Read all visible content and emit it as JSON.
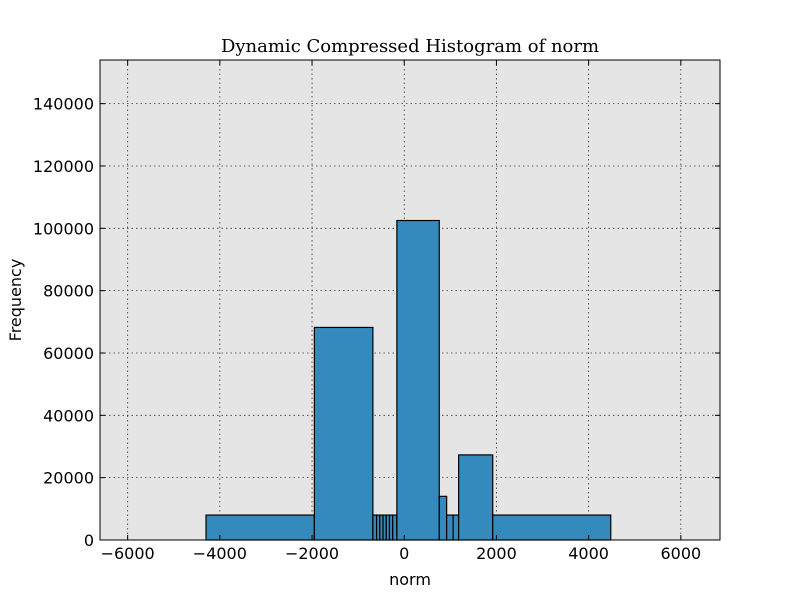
{
  "chart_data": {
    "type": "bar",
    "title": "Dynamic Compressed Histogram of norm",
    "xlabel": "norm",
    "ylabel": "Frequency",
    "xlim": [
      -6600,
      6850
    ],
    "ylim": [
      0,
      154000
    ],
    "xticks": [
      -6000,
      -4000,
      -2000,
      0,
      2000,
      4000,
      6000
    ],
    "xtick_labels": [
      "−6000",
      "−4000",
      "−2000",
      "0",
      "2000",
      "4000",
      "6000"
    ],
    "yticks": [
      0,
      20000,
      40000,
      60000,
      80000,
      100000,
      120000,
      140000
    ],
    "ytick_labels": [
      "0",
      "20000",
      "40000",
      "60000",
      "80000",
      "100000",
      "120000",
      "140000"
    ],
    "grid": true,
    "plot_background": "#e5e5e5",
    "bar_color": "#348abd",
    "bins": [
      {
        "x0": -4300,
        "x1": -1950,
        "value": 8000
      },
      {
        "x0": -1950,
        "x1": -680,
        "value": 68200
      },
      {
        "x0": -680,
        "x1": -600,
        "value": 8000
      },
      {
        "x0": -600,
        "x1": -530,
        "value": 8000
      },
      {
        "x0": -530,
        "x1": -460,
        "value": 8000
      },
      {
        "x0": -460,
        "x1": -390,
        "value": 8000
      },
      {
        "x0": -390,
        "x1": -320,
        "value": 8000
      },
      {
        "x0": -320,
        "x1": -250,
        "value": 8000
      },
      {
        "x0": -250,
        "x1": -160,
        "value": 8000
      },
      {
        "x0": -160,
        "x1": 760,
        "value": 102500
      },
      {
        "x0": 760,
        "x1": 920,
        "value": 14000
      },
      {
        "x0": 920,
        "x1": 1060,
        "value": 8000
      },
      {
        "x0": 1060,
        "x1": 1180,
        "value": 8000
      },
      {
        "x0": 1180,
        "x1": 1920,
        "value": 27300
      },
      {
        "x0": 1920,
        "x1": 4480,
        "value": 8000
      }
    ]
  }
}
